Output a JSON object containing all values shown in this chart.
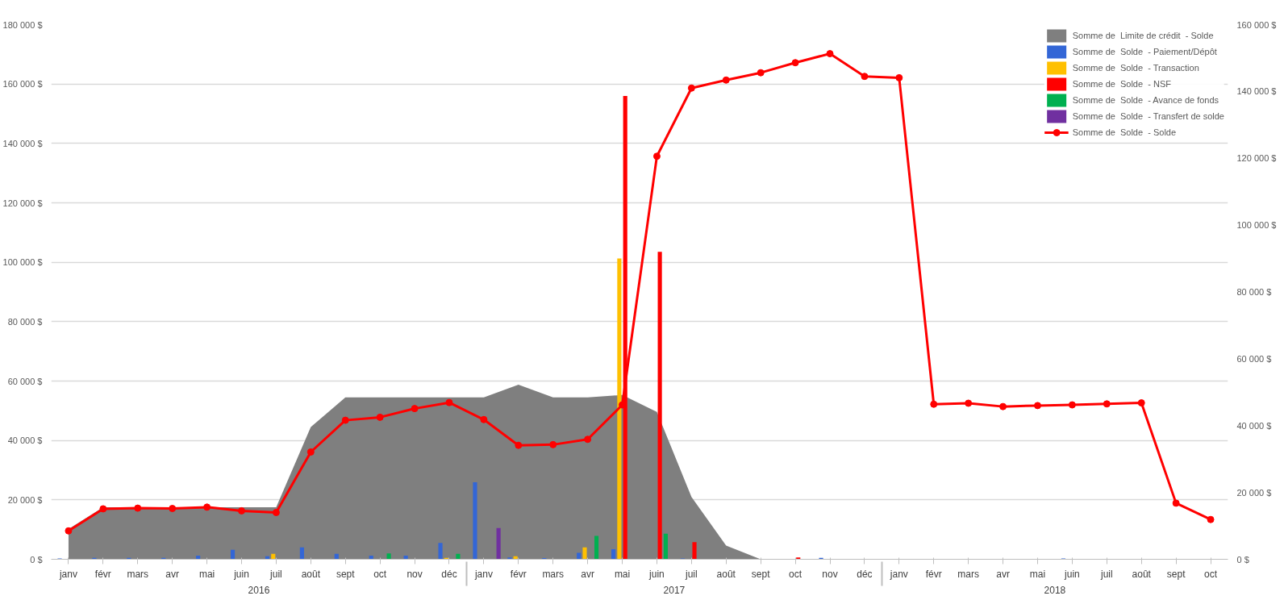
{
  "chart_data": {
    "type": "bar",
    "categories": [
      "janv",
      "févr",
      "mars",
      "avr",
      "mai",
      "juin",
      "juil",
      "août",
      "sept",
      "oct",
      "nov",
      "déc",
      "janv",
      "févr",
      "mars",
      "avr",
      "mai",
      "juin",
      "juil",
      "août",
      "sept",
      "oct",
      "nov",
      "déc",
      "janv",
      "févr",
      "mars",
      "avr",
      "mai",
      "juin",
      "juil",
      "août",
      "sept",
      "oct"
    ],
    "annotations": [
      "2016",
      "2017",
      "2018"
    ],
    "series": [
      {
        "name": "Somme de  Limite de crédit  - Solde",
        "type": "area",
        "color": "#7f7f7f",
        "values": [
          10200,
          17500,
          17500,
          17500,
          17500,
          17500,
          17500,
          44500,
          54500,
          54500,
          54500,
          54500,
          54500,
          58800,
          54500,
          54500,
          55300,
          49600,
          21000,
          4600,
          0,
          0,
          0,
          0,
          0,
          0,
          0,
          0,
          0,
          0,
          0,
          0,
          0,
          0
        ]
      },
      {
        "name": "Somme de  Solde  - Paiement/Dépôt",
        "color": "#3366d6",
        "values": [
          300,
          500,
          500,
          500,
          1200,
          3200,
          1000,
          4000,
          1800,
          1200,
          1200,
          5500,
          25900,
          600,
          400,
          2200,
          3400,
          null,
          300,
          null,
          null,
          null,
          500,
          null,
          null,
          null,
          null,
          null,
          null,
          300,
          null,
          null,
          null,
          null
        ]
      },
      {
        "name": "Somme de  Solde  - Transaction",
        "color": "#ffc000",
        "values": [
          null,
          null,
          null,
          null,
          null,
          null,
          1800,
          null,
          null,
          null,
          null,
          500,
          null,
          1000,
          null,
          4000,
          101300,
          null,
          null,
          null,
          null,
          null,
          null,
          null,
          null,
          null,
          null,
          null,
          null,
          null,
          null,
          null,
          null,
          null
        ]
      },
      {
        "name": "Somme de  Solde  - NSF",
        "color": "#ff0000",
        "values": [
          null,
          null,
          null,
          null,
          null,
          null,
          null,
          null,
          null,
          null,
          null,
          null,
          null,
          null,
          null,
          null,
          156000,
          103500,
          5800,
          null,
          null,
          600,
          null,
          null,
          null,
          null,
          null,
          null,
          null,
          null,
          null,
          null,
          null,
          null
        ]
      },
      {
        "name": "Somme de  Solde  - Avance de fonds",
        "color": "#00b050",
        "values": [
          null,
          null,
          null,
          null,
          null,
          null,
          null,
          null,
          null,
          2000,
          null,
          1800,
          null,
          null,
          null,
          7900,
          null,
          8600,
          null,
          null,
          null,
          null,
          null,
          null,
          null,
          null,
          null,
          null,
          null,
          null,
          null,
          null,
          null,
          null
        ]
      },
      {
        "name": "Somme de  Solde  - Transfert de solde",
        "color": "#7030a0",
        "values": [
          null,
          null,
          null,
          null,
          null,
          null,
          null,
          null,
          null,
          null,
          null,
          null,
          10500,
          null,
          null,
          null,
          null,
          null,
          null,
          null,
          null,
          null,
          null,
          null,
          null,
          null,
          null,
          null,
          null,
          null,
          null,
          null,
          null,
          null
        ]
      },
      {
        "name": "Somme de  Solde  - Solde",
        "type": "line",
        "axis": "y2",
        "marker": "circle",
        "color": "#ff0000",
        "values": [
          8500,
          15100,
          15300,
          15200,
          15600,
          14500,
          14000,
          32100,
          41600,
          42500,
          45100,
          46900,
          41800,
          34100,
          34300,
          35900,
          46200,
          120600,
          141000,
          143400,
          145600,
          148600,
          151300,
          144500,
          144100,
          46400,
          46700,
          45700,
          46000,
          46200,
          46500,
          46800,
          16800,
          11900
        ]
      }
    ],
    "ylim": [
      0,
      180000
    ],
    "yticks": [
      {
        "value": 0,
        "label": "0 $"
      },
      {
        "value": 20000,
        "label": "20 000 $"
      },
      {
        "value": 40000,
        "label": "40 000 $"
      },
      {
        "value": 60000,
        "label": "60 000 $"
      },
      {
        "value": 80000,
        "label": "80 000 $"
      },
      {
        "value": 100000,
        "label": "100 000 $"
      },
      {
        "value": 120000,
        "label": "120 000 $"
      },
      {
        "value": 140000,
        "label": "140 000 $"
      },
      {
        "value": 160000,
        "label": "160 000 $"
      },
      {
        "value": 180000,
        "label": "180 000 $"
      }
    ],
    "y2lim": [
      0,
      160000
    ],
    "y2ticks": [
      {
        "value": 0,
        "label": "0 $"
      },
      {
        "value": 20000,
        "label": "20 000 $"
      },
      {
        "value": 40000,
        "label": "40 000 $"
      },
      {
        "value": 60000,
        "label": "60 000 $"
      },
      {
        "value": 80000,
        "label": "80 000 $"
      },
      {
        "value": 100000,
        "label": "100 000 $"
      },
      {
        "value": 120000,
        "label": "120 000 $"
      },
      {
        "value": 140000,
        "label": "140 000 $"
      },
      {
        "value": 160000,
        "label": "160 000 $"
      }
    ],
    "grid": "y",
    "legend": "top right"
  }
}
